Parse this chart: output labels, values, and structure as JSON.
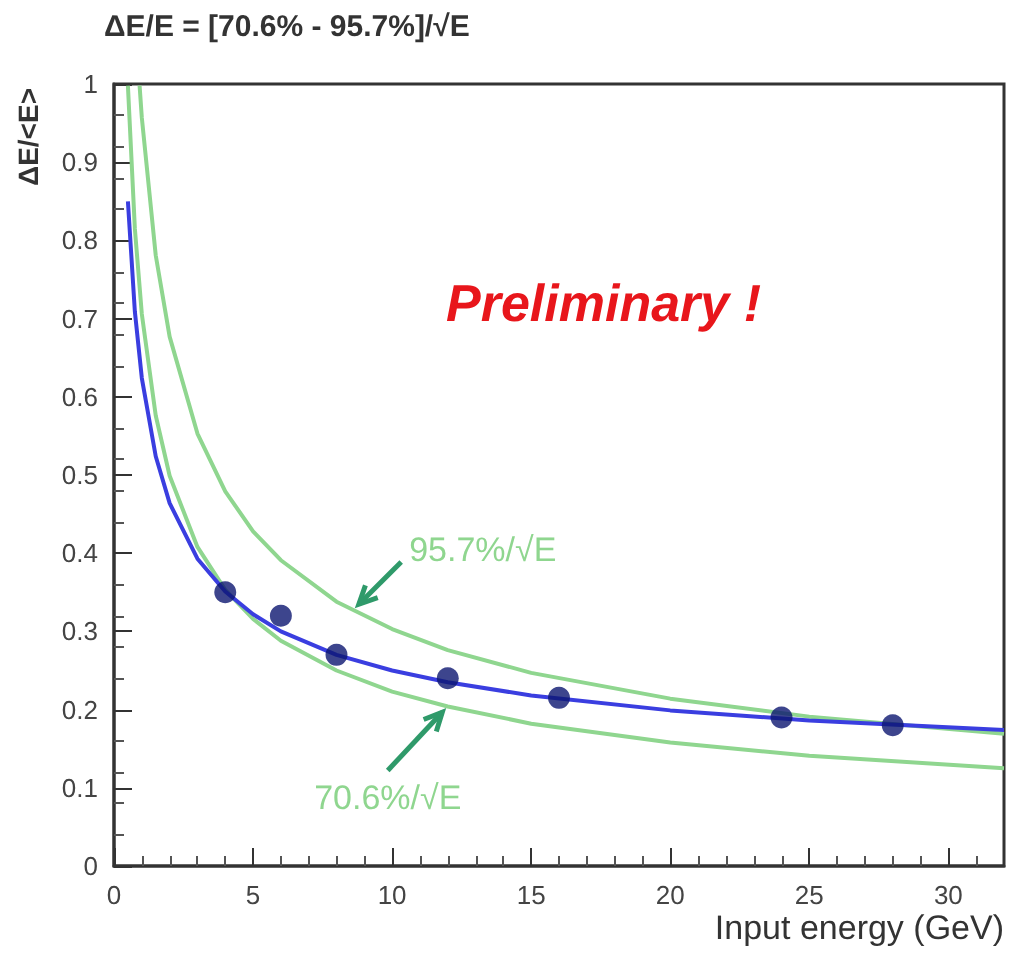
{
  "chart_data": {
    "type": "scatter",
    "title": "ΔE/E = [70.6% - 95.7%]/√E",
    "xlabel": "Input energy (GeV)",
    "ylabel": "ΔE/<E>",
    "annotations": [
      "Preliminary !"
    ],
    "xlim": [
      0,
      32
    ],
    "xticks": [
      0,
      5,
      10,
      15,
      20,
      25,
      30
    ],
    "ylim": [
      0,
      1
    ],
    "yticks": [
      0,
      0.1,
      0.2,
      0.3,
      0.4,
      0.5,
      0.6,
      0.7,
      0.8,
      0.9,
      1
    ],
    "grid": false,
    "legend": false,
    "marker": "circle",
    "series": [
      {
        "type": "line",
        "name": "95.7%/√E",
        "color": "#8fd68f",
        "marker": "none",
        "x": [
          0.92,
          1,
          1.5,
          2,
          3,
          4,
          5,
          6,
          8,
          10,
          12,
          15,
          20,
          25,
          32
        ],
        "values": [
          0.998,
          0.957,
          0.781,
          0.677,
          0.553,
          0.479,
          0.428,
          0.391,
          0.338,
          0.303,
          0.276,
          0.247,
          0.214,
          0.191,
          0.169
        ]
      },
      {
        "type": "line",
        "name": "70.6%/√E",
        "color": "#8fd68f",
        "marker": "none",
        "x": [
          0.5,
          0.75,
          1,
          1.5,
          2,
          3,
          4,
          5,
          6,
          8,
          10,
          12,
          15,
          20,
          25,
          32
        ],
        "values": [
          0.998,
          0.815,
          0.706,
          0.576,
          0.499,
          0.408,
          0.353,
          0.316,
          0.288,
          0.25,
          0.223,
          0.204,
          0.182,
          0.158,
          0.141,
          0.125
        ]
      },
      {
        "type": "line",
        "color": "#3a3ee0",
        "marker": "none",
        "x": [
          0.5,
          0.75,
          1,
          1.5,
          2,
          3,
          4,
          5,
          6,
          8,
          10,
          12,
          15,
          20,
          25,
          32
        ],
        "values": [
          0.85,
          0.709,
          0.624,
          0.524,
          0.464,
          0.393,
          0.351,
          0.322,
          0.3,
          0.27,
          0.25,
          0.235,
          0.218,
          0.199,
          0.186,
          0.174
        ]
      },
      {
        "color": "#0d1670",
        "x": [
          4,
          6,
          8,
          12,
          16,
          24,
          28
        ],
        "values": [
          0.35,
          0.32,
          0.27,
          0.24,
          0.215,
          0.19,
          0.18
        ]
      }
    ]
  }
}
